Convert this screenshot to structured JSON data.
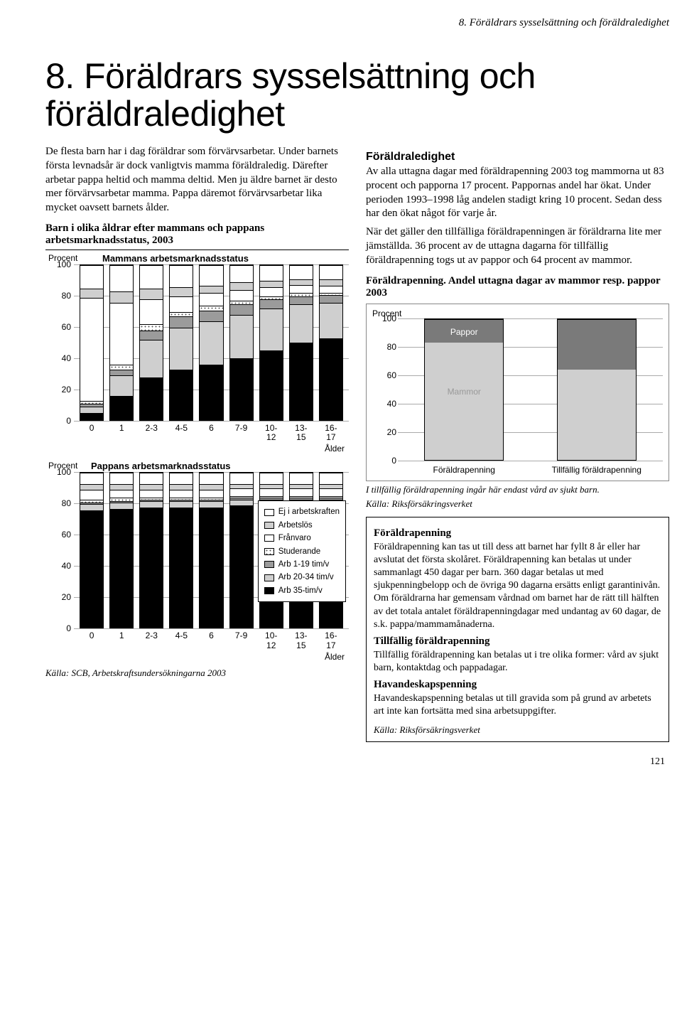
{
  "running_head": "8. Föräldrars sysselsättning och föräldraledighet",
  "title": "8. Föräldrars sysselsättning och föräldraledighet",
  "page_number": "121",
  "left": {
    "intro": "De flesta barn har i dag föräldrar som förvärvsarbetar. Under barnets första levnadsår är dock vanligtvis mamma föräldraledig. Därefter arbetar pappa heltid och mamma deltid. Men ju äldre barnet är desto mer förvärvsarbetar mamma. Pappa däremot förvärvsarbetar lika mycket oavsett barnets ålder.",
    "chart_title": "Barn i olika åldrar efter mammans och pappans arbetsmarknadsstatus, 2003",
    "y_label": "Procent",
    "x_label": "Ålder",
    "sub_m_title": "Mammans arbetsmarknadsstatus",
    "sub_p_title": "Pappans arbetsmarknadsstatus",
    "categories": [
      "0",
      "1",
      "2-3",
      "4-5",
      "6",
      "7-9",
      "10-\n12",
      "13-\n15",
      "16-\n17"
    ],
    "ylim": [
      0,
      100
    ],
    "ytick_step": 20,
    "segment_order": [
      "arb35",
      "arb20_34",
      "arb1_19",
      "stud",
      "fran",
      "arbetslos",
      "ej"
    ],
    "legend": {
      "ej": "Ej i arbetskraften",
      "arbetslos": "Arbetslös",
      "fran": "Frånvaro",
      "stud": "Studerande",
      "arb1_19": "Arb 1-19 tim/v",
      "arb20_34": "Arb 20-34 tim/v",
      "arb35": "Arb 35-tim/v"
    },
    "colors": {
      "ej": "#ffffff",
      "arbetslos": "#cfcfcf",
      "fran": "#ffffff",
      "stud": "#ffffff",
      "arb1_19": "#9b9b9b",
      "arb20_34": "#cfcfcf",
      "arb35": "#000000"
    },
    "patterns": {
      "ej": "solid",
      "arbetslos": "solid",
      "fran": "diag",
      "stud": "dots",
      "arb1_19": "solid",
      "arb20_34": "solid",
      "arb35": "solid"
    },
    "mamma_data": [
      {
        "arb35": 5,
        "arb20_34": 4,
        "arb1_19": 2,
        "stud": 2,
        "fran": 66,
        "arbetslos": 6,
        "ej": 15
      },
      {
        "arb35": 16,
        "arb20_34": 13,
        "arb1_19": 4,
        "stud": 3,
        "fran": 40,
        "arbetslos": 7,
        "ej": 17
      },
      {
        "arb35": 28,
        "arb20_34": 24,
        "arb1_19": 6,
        "stud": 4,
        "fran": 16,
        "arbetslos": 7,
        "ej": 15
      },
      {
        "arb35": 33,
        "arb20_34": 27,
        "arb1_19": 7,
        "stud": 3,
        "fran": 10,
        "arbetslos": 6,
        "ej": 14
      },
      {
        "arb35": 36,
        "arb20_34": 28,
        "arb1_19": 7,
        "stud": 3,
        "fran": 8,
        "arbetslos": 5,
        "ej": 13
      },
      {
        "arb35": 40,
        "arb20_34": 28,
        "arb1_19": 7,
        "stud": 2,
        "fran": 7,
        "arbetslos": 5,
        "ej": 11
      },
      {
        "arb35": 45,
        "arb20_34": 27,
        "arb1_19": 6,
        "stud": 2,
        "fran": 6,
        "arbetslos": 4,
        "ej": 10
      },
      {
        "arb35": 50,
        "arb20_34": 25,
        "arb1_19": 5,
        "stud": 2,
        "fran": 5,
        "arbetslos": 4,
        "ej": 9
      },
      {
        "arb35": 53,
        "arb20_34": 23,
        "arb1_19": 5,
        "stud": 1,
        "fran": 5,
        "arbetslos": 4,
        "ej": 9
      }
    ],
    "pappa_data": [
      {
        "arb35": 76,
        "arb20_34": 4,
        "arb1_19": 1,
        "stud": 2,
        "fran": 6,
        "arbetslos": 4,
        "ej": 7
      },
      {
        "arb35": 77,
        "arb20_34": 4,
        "arb1_19": 1,
        "stud": 2,
        "fran": 5,
        "arbetslos": 4,
        "ej": 7
      },
      {
        "arb35": 78,
        "arb20_34": 4,
        "arb1_19": 1,
        "stud": 1,
        "fran": 5,
        "arbetslos": 4,
        "ej": 7
      },
      {
        "arb35": 78,
        "arb20_34": 4,
        "arb1_19": 1,
        "stud": 1,
        "fran": 5,
        "arbetslos": 4,
        "ej": 7
      },
      {
        "arb35": 78,
        "arb20_34": 4,
        "arb1_19": 1,
        "stud": 1,
        "fran": 5,
        "arbetslos": 4,
        "ej": 7
      },
      {
        "arb35": 79,
        "arb20_34": 4,
        "arb1_19": 1,
        "stud": 1,
        "fran": 5,
        "arbetslos": 3,
        "ej": 7
      },
      {
        "arb35": 79,
        "arb20_34": 4,
        "arb1_19": 1,
        "stud": 1,
        "fran": 5,
        "arbetslos": 3,
        "ej": 7
      },
      {
        "arb35": 79,
        "arb20_34": 4,
        "arb1_19": 1,
        "stud": 1,
        "fran": 5,
        "arbetslos": 3,
        "ej": 7
      },
      {
        "arb35": 79,
        "arb20_34": 4,
        "arb1_19": 1,
        "stud": 1,
        "fran": 5,
        "arbetslos": 3,
        "ej": 7
      }
    ],
    "source": "Källa: SCB, Arbetskraftsundersökningarna 2003"
  },
  "right": {
    "heading1": "Föräldraledighet",
    "p1": "Av alla uttagna dagar med föräldrapenning 2003 tog mammorna ut 83 procent och papporna 17 procent. Pappornas andel har ökat. Under perioden 1993–1998 låg andelen stadigt kring 10 procent. Sedan dess har den ökat något för varje år.",
    "p2": "När det gäller den tillfälliga föräldrapenningen är föräldrarna lite mer jämställda. 36 procent av de uttagna dagarna för tillfällig föräldrapenning togs ut av pappor och 64 procent av mammor.",
    "chart2_title": "Föräldrapenning. Andel uttagna dagar av mammor resp. pappor 2003",
    "chart2_ylabel": "Procent",
    "chart2_ylim": [
      0,
      100
    ],
    "chart2_ytick_step": 20,
    "chart2_categories": [
      "Föräldrapenning",
      "Tillfällig föräldrapenning"
    ],
    "chart2_labels": {
      "pappor": "Pappor",
      "mammor": "Mammor"
    },
    "chart2_colors": {
      "mammor": "#cfcfcf",
      "pappor": "#7a7a7a"
    },
    "chart2_data": [
      {
        "mammor": 83,
        "pappor": 17
      },
      {
        "mammor": 64,
        "pappor": 36
      }
    ],
    "chart2_foot": "I tillfällig föräldrapenning ingår här endast vård av sjukt barn.",
    "chart2_source": "Källa: Riksförsäkringsverket",
    "box": {
      "t1": "Föräldrapenning",
      "p1": "Föräldrapenning kan tas ut till dess att barnet har fyllt 8 år eller har avslutat det första skolåret. Föräldrapenning kan betalas ut under sammanlagt 450 dagar per barn. 360 dagar betalas ut med sjukpenningbelopp och de övriga 90 dagarna ersätts enligt garantinivån. Om föräldrarna har gemensam vårdnad om barnet har de rätt till hälften av det totala antalet föräldrapenningdagar med undantag av 60 dagar, de s.k. pappa/mammamånaderna.",
      "t2": "Tillfällig föräldrapenning",
      "p2": "Tillfällig föräldrapenning kan betalas ut i tre olika former: vård av sjukt barn, kontaktdag och pappadagar.",
      "t3": "Havandeskapspenning",
      "p3": "Havandeskapspenning betalas ut till gravida som på grund av arbetets art inte kan fortsätta med sina arbetsuppgifter.",
      "src": "Källa: Riksförsäkringsverket"
    }
  }
}
